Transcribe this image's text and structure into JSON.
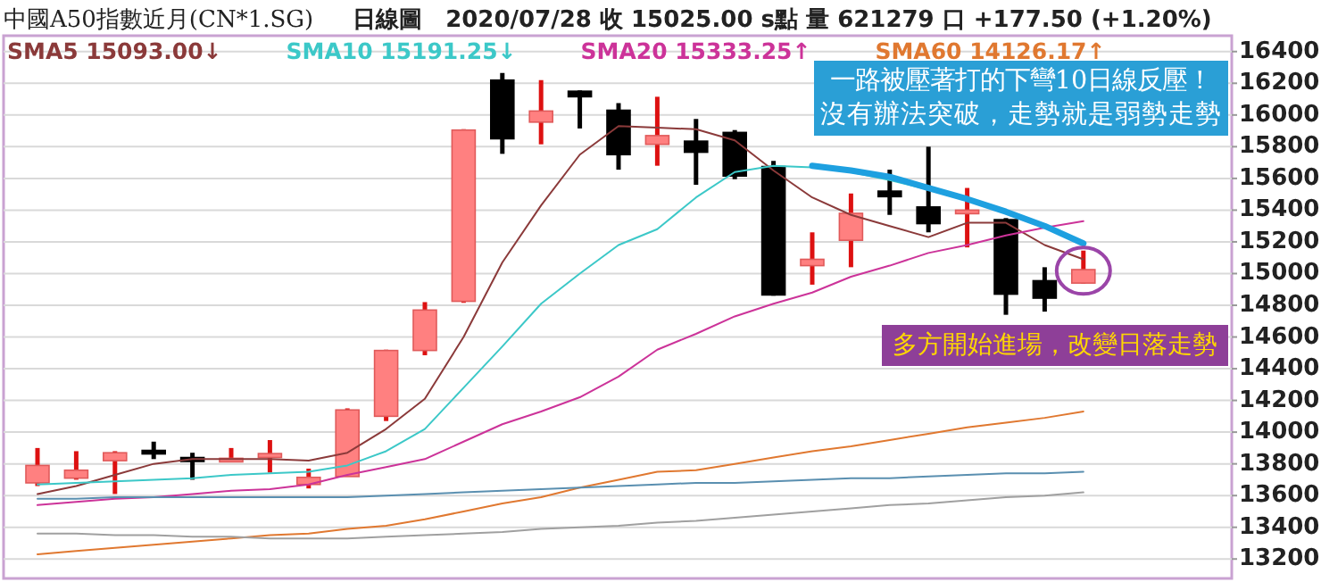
{
  "chart_data": {
    "type": "candlestick",
    "title": "中國A50指數近月(CN*1.SG)",
    "subtitle": "日線圖　2020/07/28 收 15025.00 s點 量 621279 口 +177.50 (+1.20%)",
    "categories": [
      null,
      null,
      null,
      null,
      null,
      null,
      null,
      null,
      null,
      null,
      null,
      null,
      null,
      null,
      null,
      null,
      null,
      null,
      null,
      null,
      null,
      null,
      null,
      null,
      null,
      null,
      null,
      null
    ],
    "ohlc": [
      [
        13680,
        13900,
        13660,
        13790
      ],
      [
        13710,
        13880,
        13700,
        13760
      ],
      [
        13820,
        13880,
        13610,
        13870
      ],
      [
        13885,
        13940,
        13830,
        13875
      ],
      [
        13840,
        13870,
        13700,
        13815
      ],
      [
        13820,
        13900,
        13810,
        13835
      ],
      [
        13840,
        13950,
        13745,
        13865
      ],
      [
        13670,
        13770,
        13645,
        13715
      ],
      [
        13720,
        14150,
        13720,
        14140
      ],
      [
        14100,
        14520,
        14070,
        14515
      ],
      [
        14515,
        14820,
        14485,
        14770
      ],
      [
        14825,
        15910,
        14815,
        15905
      ],
      [
        16220,
        16265,
        15755,
        15850
      ],
      [
        15955,
        16220,
        15815,
        16025
      ],
      [
        16150,
        16155,
        15915,
        16115
      ],
      [
        16030,
        16075,
        15655,
        15750
      ],
      [
        15815,
        16115,
        15680,
        15870
      ],
      [
        15835,
        15975,
        15560,
        15765
      ],
      [
        15890,
        15905,
        15595,
        15615
      ],
      [
        15675,
        15710,
        14860,
        14865
      ],
      [
        15050,
        15260,
        14930,
        15090
      ],
      [
        15210,
        15505,
        15040,
        15380
      ],
      [
        15520,
        15655,
        15370,
        15485
      ],
      [
        15420,
        15800,
        15260,
        15315
      ],
      [
        15380,
        15540,
        15165,
        15400
      ],
      [
        15340,
        15350,
        14740,
        14870
      ],
      [
        14955,
        15040,
        14760,
        14845
      ],
      [
        14940,
        15145,
        14935,
        15025
      ]
    ],
    "colors": [
      "#ff8080",
      "#ff8080",
      "#ff8080",
      "#000000",
      "#000000",
      "#ff8080",
      "#ff8080",
      "#ff8080",
      "#ff8080",
      "#ff8080",
      "#ff8080",
      "#ff8080",
      "#000000",
      "#ff8080",
      "#000000",
      "#000000",
      "#ff8080",
      "#000000",
      "#000000",
      "#000000",
      "#ff8080",
      "#ff8080",
      "#000000",
      "#000000",
      "#ff8080",
      "#000000",
      "#000000",
      "#ff8080"
    ],
    "series": [
      {
        "name": "SMA5 15093.00↓",
        "type": "line",
        "color": "#8b3a3a",
        "values": [
          13610,
          13660,
          13730,
          13800,
          13830,
          13830,
          13830,
          13820,
          13870,
          14020,
          14210,
          14600,
          15070,
          15430,
          15750,
          15930,
          15920,
          15910,
          15840,
          15650,
          15480,
          15370,
          15300,
          15230,
          15320,
          15320,
          15180,
          15090
        ]
      },
      {
        "name": "SMA10 15191.25↓",
        "type": "line",
        "color": "#3cc8c8",
        "values": [
          13670,
          13680,
          13690,
          13700,
          13710,
          13730,
          13740,
          13750,
          13790,
          13880,
          14020,
          14280,
          14540,
          14810,
          15000,
          15180,
          15280,
          15480,
          15640,
          15680,
          15670,
          15640,
          15590,
          15530,
          15470,
          15390,
          15300,
          15190
        ]
      },
      {
        "name": "SMA20 15333.25↑",
        "type": "line",
        "color": "#cc3399",
        "values": [
          13540,
          13560,
          13580,
          13590,
          13610,
          13630,
          13640,
          13670,
          13730,
          13780,
          13830,
          13940,
          14050,
          14130,
          14220,
          14350,
          14520,
          14620,
          14730,
          14810,
          14880,
          14980,
          15050,
          15130,
          15180,
          15240,
          15290,
          15330
        ]
      },
      {
        "name": "SMA60 14126.17↑",
        "type": "line",
        "color": "#e07830",
        "values": [
          13230,
          13250,
          13270,
          13290,
          13310,
          13330,
          13350,
          13360,
          13390,
          13410,
          13450,
          13500,
          13550,
          13590,
          13650,
          13700,
          13750,
          13760,
          13800,
          13840,
          13880,
          13910,
          13950,
          13990,
          14030,
          14060,
          14090,
          14130
        ]
      },
      {
        "type": "line",
        "color": "#5a8fb0",
        "values": [
          13580,
          13580,
          13590,
          13590,
          13590,
          13590,
          13590,
          13590,
          13590,
          13600,
          13610,
          13620,
          13630,
          13640,
          13650,
          13660,
          13670,
          13680,
          13680,
          13690,
          13700,
          13710,
          13710,
          13720,
          13730,
          13740,
          13740,
          13750
        ]
      },
      {
        "type": "line",
        "color": "#a0a0a0",
        "values": [
          13360,
          13360,
          13350,
          13350,
          13340,
          13340,
          13330,
          13330,
          13330,
          13340,
          13350,
          13360,
          13370,
          13390,
          13400,
          13410,
          13430,
          13440,
          13460,
          13480,
          13500,
          13520,
          13540,
          13550,
          13570,
          13590,
          13600,
          13620
        ]
      },
      {
        "type": "line",
        "color": "#1ea0e0",
        "line_style": "solid",
        "values": [
          null,
          null,
          null,
          null,
          null,
          null,
          null,
          null,
          null,
          null,
          null,
          null,
          null,
          null,
          null,
          null,
          null,
          null,
          null,
          null,
          15680,
          15650,
          15610,
          15540,
          15470,
          15390,
          15300,
          15190
        ]
      }
    ],
    "ylim": [
      13100,
      16500
    ],
    "yticks": [
      13200,
      13400,
      13600,
      13800,
      14000,
      14200,
      14400,
      14600,
      14800,
      15000,
      15200,
      15400,
      15600,
      15800,
      16000,
      16200,
      16400
    ],
    "grid": "y",
    "legend": "top left",
    "annotations": [
      "一路被壓著打的下彎10日線反壓！",
      "沒有辦法突破，走勢就是弱勢走勢",
      "多方開始進場，改變日落走勢"
    ]
  }
}
